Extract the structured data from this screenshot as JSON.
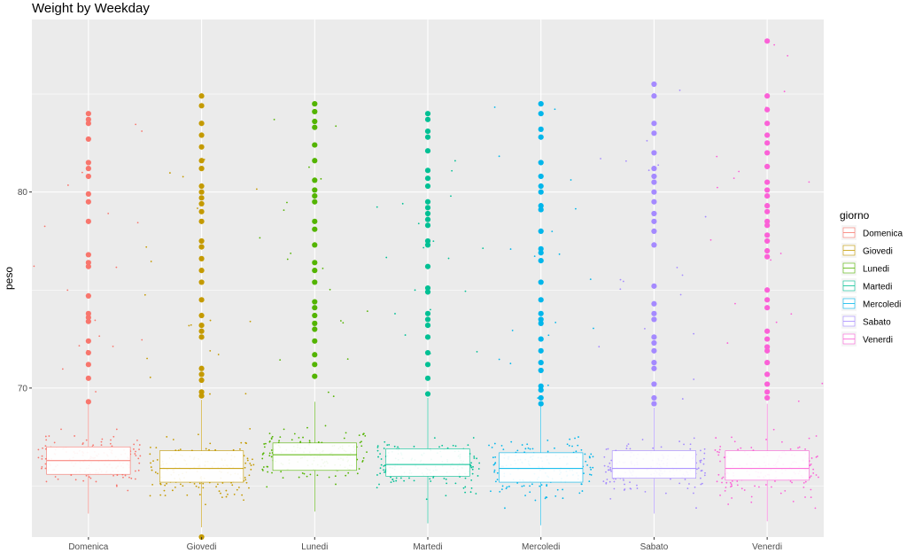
{
  "chart_data": {
    "type": "boxplot-jitter",
    "title": "Weight by Weekday",
    "xlabel": "",
    "ylabel": "peso",
    "ylim": [
      62.4,
      88.8
    ],
    "yticks": [
      70,
      80
    ],
    "grid": true,
    "legend": {
      "title": "giorno",
      "placement": "right",
      "entries": [
        "Domenica",
        "Giovedi",
        "Lunedi",
        "Martedi",
        "Mercoledi",
        "Sabato",
        "Venerdi"
      ]
    },
    "categories": [
      "Domenica",
      "Giovedi",
      "Lunedi",
      "Martedi",
      "Mercoledi",
      "Sabato",
      "Venerdi"
    ],
    "colors": [
      "#F8766D",
      "#C49A00",
      "#53B400",
      "#00C094",
      "#00B6EB",
      "#A58AFF",
      "#FB61D7"
    ],
    "series": [
      {
        "name": "Domenica",
        "box": {
          "q1": 65.6,
          "median": 66.3,
          "q3": 67.0,
          "whisker_low": 63.6,
          "whisker_high": 69.2
        },
        "outliers": [
          69.3,
          70.5,
          71.2,
          71.8,
          72.4,
          73.4,
          73.6,
          73.8,
          74.7,
          76.2,
          76.4,
          76.8,
          78.5,
          79.5,
          79.9,
          80.8,
          81.2,
          81.5,
          82.7,
          83.5,
          83.7,
          84.0
        ]
      },
      {
        "name": "Giovedi",
        "box": {
          "q1": 65.2,
          "median": 65.9,
          "q3": 66.8,
          "whisker_low": 62.9,
          "whisker_high": 69.4
        },
        "outliers": [
          62.4,
          69.6,
          69.8,
          70.4,
          70.7,
          71.0,
          72.6,
          72.9,
          73.2,
          73.7,
          74.5,
          75.4,
          76.0,
          76.6,
          77.2,
          77.5,
          78.5,
          79.0,
          79.4,
          79.7,
          80.0,
          80.3,
          81.2,
          81.6,
          82.3,
          82.9,
          83.5,
          84.4,
          84.9
        ]
      },
      {
        "name": "Lunedi",
        "box": {
          "q1": 65.8,
          "median": 66.6,
          "q3": 67.2,
          "whisker_low": 63.7,
          "whisker_high": 69.3
        },
        "outliers": [
          70.6,
          71.2,
          71.7,
          72.4,
          73.0,
          73.3,
          73.7,
          74.1,
          74.4,
          75.4,
          76.0,
          76.4,
          77.3,
          78.1,
          78.5,
          79.5,
          79.8,
          80.1,
          80.6,
          81.6,
          82.4,
          83.3,
          83.6,
          84.1,
          84.5
        ]
      },
      {
        "name": "Martedi",
        "box": {
          "q1": 65.5,
          "median": 66.1,
          "q3": 66.9,
          "whisker_low": 63.1,
          "whisker_high": 69.5
        },
        "outliers": [
          69.7,
          70.5,
          71.2,
          71.8,
          72.6,
          73.2,
          73.5,
          73.8,
          74.9,
          75.1,
          76.2,
          77.3,
          77.5,
          78.3,
          78.6,
          78.9,
          79.2,
          79.5,
          80.3,
          80.7,
          81.1,
          82.1,
          82.8,
          83.1,
          83.7,
          84.0
        ]
      },
      {
        "name": "Mercoledi",
        "box": {
          "q1": 65.2,
          "median": 65.9,
          "q3": 66.7,
          "whisker_low": 63.0,
          "whisker_high": 69.1
        },
        "outliers": [
          69.2,
          69.5,
          69.9,
          70.1,
          70.9,
          71.3,
          71.9,
          72.5,
          73.3,
          73.5,
          73.8,
          74.5,
          75.4,
          76.5,
          76.9,
          77.1,
          78.0,
          79.1,
          79.3,
          80.0,
          80.3,
          80.8,
          81.5,
          82.8,
          83.2,
          84.0,
          84.5
        ]
      },
      {
        "name": "Sabato",
        "box": {
          "q1": 65.4,
          "median": 65.9,
          "q3": 66.8,
          "whisker_low": 63.6,
          "whisker_high": 69.0
        },
        "outliers": [
          69.2,
          69.5,
          70.2,
          71.0,
          71.3,
          71.9,
          72.3,
          72.6,
          73.5,
          73.8,
          74.3,
          75.2,
          77.3,
          78.0,
          78.5,
          78.9,
          79.5,
          80.0,
          80.5,
          80.8,
          81.2,
          82.0,
          83.0,
          83.5,
          84.9,
          85.5
        ]
      },
      {
        "name": "Venerdi",
        "box": {
          "q1": 65.3,
          "median": 65.9,
          "q3": 66.8,
          "whisker_low": 63.2,
          "whisker_high": 69.2
        },
        "outliers": [
          69.5,
          69.8,
          70.2,
          70.7,
          71.3,
          71.9,
          72.1,
          72.5,
          72.9,
          74.1,
          74.5,
          75.0,
          76.7,
          77.0,
          77.5,
          77.8,
          78.3,
          78.5,
          79.0,
          79.3,
          79.8,
          80.1,
          80.5,
          81.3,
          82.0,
          82.5,
          82.9,
          83.5,
          84.2,
          84.9,
          87.7
        ]
      }
    ]
  }
}
